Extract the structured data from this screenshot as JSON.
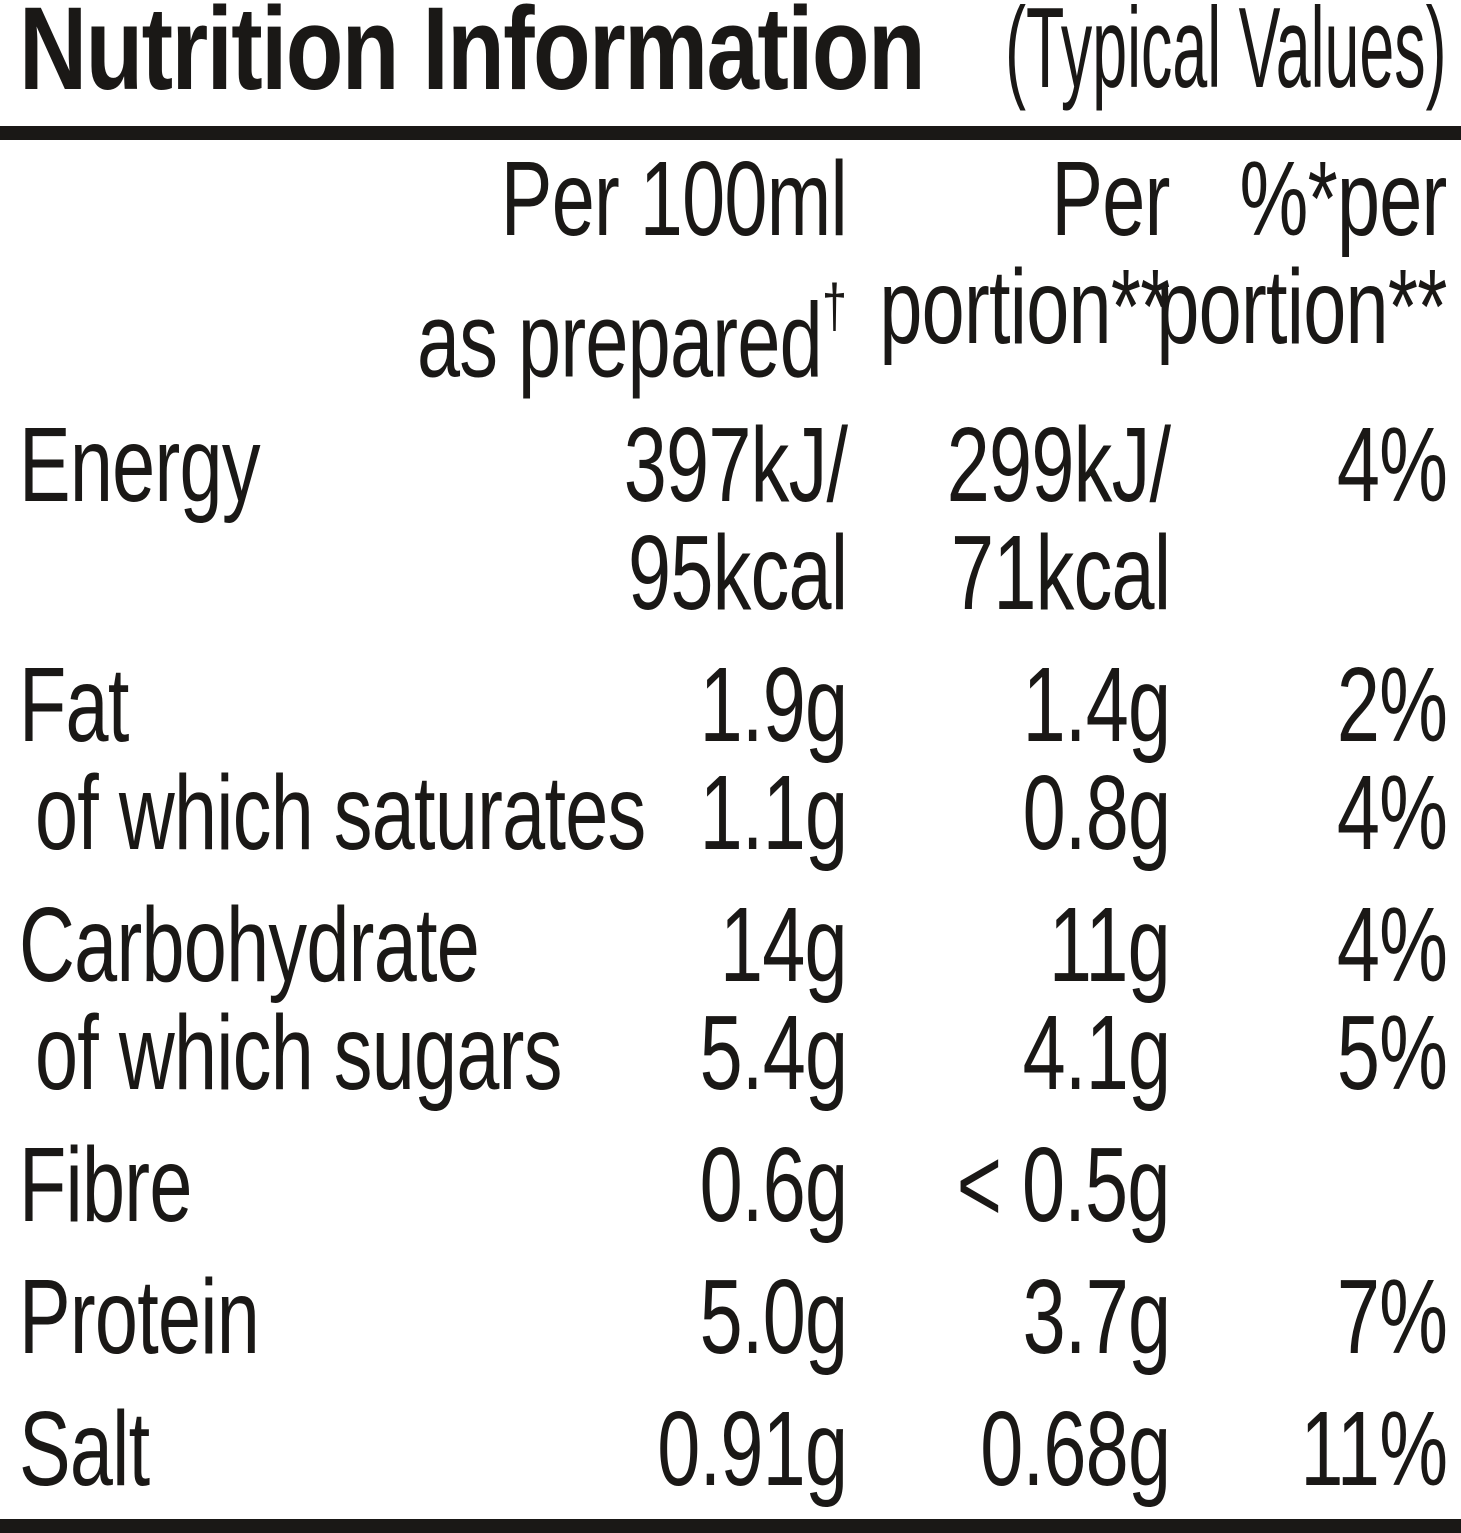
{
  "title": {
    "main": "Nutrition Information",
    "suffix": "(Typical Values)"
  },
  "header": {
    "col_per100": {
      "line1": "Per 100ml",
      "line2": "as prepared",
      "sup": "†"
    },
    "col_portion": {
      "line1": "Per",
      "line2": "portion**"
    },
    "col_percent": {
      "line1": "%*per",
      "line2": "portion**"
    }
  },
  "rows": [
    {
      "label": "Energy",
      "per100": "397kJ/\n95kcal",
      "portion": "299kJ/\n71kcal",
      "percent": "4%",
      "indent": false,
      "group_start": true
    },
    {
      "label": "Fat",
      "per100": "1.9g",
      "portion": "1.4g",
      "percent": "2%",
      "indent": false,
      "group_start": true
    },
    {
      "label": "of which saturates",
      "per100": "1.1g",
      "portion": "0.8g",
      "percent": "4%",
      "indent": true,
      "group_start": false
    },
    {
      "label": "Carbohydrate",
      "per100": "14g",
      "portion": "11g",
      "percent": "4%",
      "indent": false,
      "group_start": true
    },
    {
      "label": "of which sugars",
      "per100": "5.4g",
      "portion": "4.1g",
      "percent": "5%",
      "indent": true,
      "group_start": false
    },
    {
      "label": "Fibre",
      "per100": "0.6g",
      "portion": "< 0.5g",
      "percent": "",
      "indent": false,
      "group_start": true
    },
    {
      "label": "Protein",
      "per100": "5.0g",
      "portion": "3.7g",
      "percent": "7%",
      "indent": false,
      "group_start": true
    },
    {
      "label": "Salt",
      "per100": "0.91g",
      "portion": "0.68g",
      "percent": "11%",
      "indent": false,
      "group_start": true
    }
  ],
  "colors": {
    "text": "#1a1816",
    "rule": "#1a1816",
    "background": "#ffffff"
  }
}
